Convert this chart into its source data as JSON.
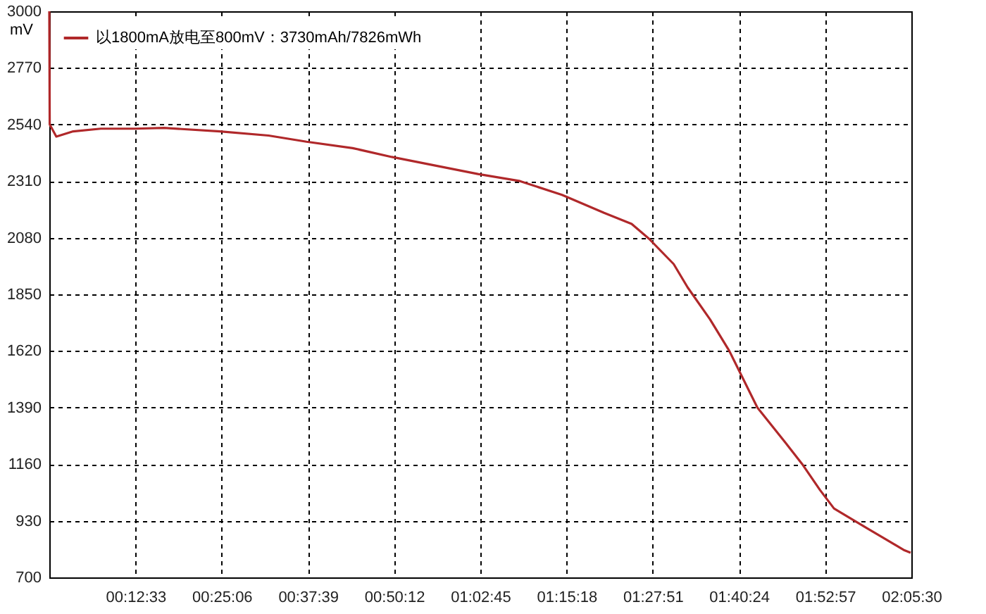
{
  "chart_data": {
    "type": "line",
    "ylabel": "mV",
    "legend": "top left",
    "grid": true,
    "line_style": "solid",
    "marker": "none",
    "xlim": [
      0,
      2.0917
    ],
    "ylim": [
      700,
      3000
    ],
    "xticks": [
      {
        "value": 0.2092,
        "label": "00:12:33"
      },
      {
        "value": 0.4183,
        "label": "00:25:06"
      },
      {
        "value": 0.6275,
        "label": "00:37:39"
      },
      {
        "value": 0.8367,
        "label": "00:50:12"
      },
      {
        "value": 1.0458,
        "label": "01:02:45"
      },
      {
        "value": 1.255,
        "label": "01:15:18"
      },
      {
        "value": 1.4642,
        "label": "01:27:51"
      },
      {
        "value": 1.6733,
        "label": "01:40:24"
      },
      {
        "value": 1.8825,
        "label": "01:52:57"
      },
      {
        "value": 2.0917,
        "label": "02:05:30"
      }
    ],
    "yticks": [
      700,
      930,
      1160,
      1390,
      1620,
      1850,
      2080,
      2310,
      2540,
      2770,
      3000
    ],
    "series": [
      {
        "name": "以1800mA放电至800mV：3730mAh/7826mWh",
        "color": "#b0282a",
        "x": [
          0,
          0.001,
          0.017,
          0.058,
          0.125,
          0.209,
          0.278,
          0.414,
          0.532,
          0.624,
          0.736,
          0.831,
          1.04,
          1.142,
          1.244,
          1.346,
          1.413,
          1.455,
          1.515,
          1.549,
          1.603,
          1.65,
          1.718,
          1.786,
          1.827,
          1.87,
          1.904,
          1.921,
          1.989,
          2.075,
          2.09
        ],
        "values": [
          3000,
          2540,
          2491,
          2512,
          2523,
          2523,
          2526,
          2512,
          2495,
          2470,
          2444,
          2408,
          2339,
          2310,
          2254,
          2181,
          2136,
          2076,
          1973,
          1878,
          1749,
          1620,
          1390,
          1248,
          1160,
          1055,
          980,
          963,
          895,
          810,
          800
        ]
      }
    ]
  }
}
